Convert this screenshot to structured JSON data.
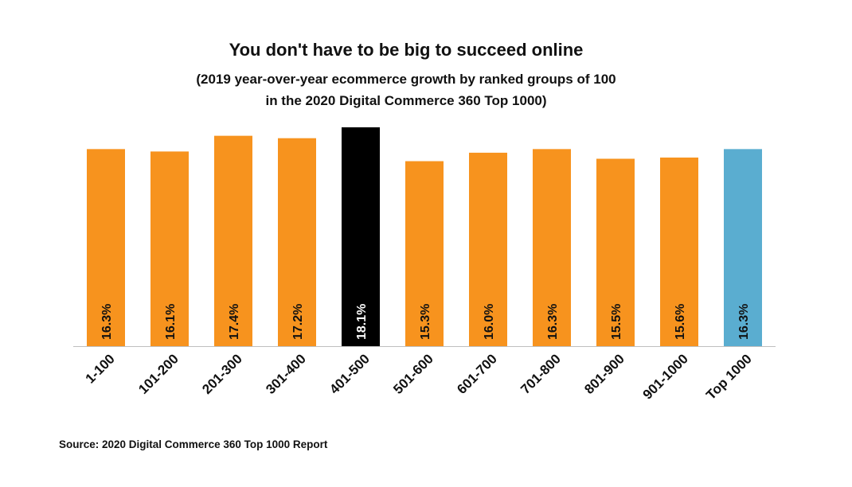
{
  "title": "You don't have to be big to succeed online",
  "subtitle_line1": "(2019 year-over-year ecommerce growth by ranked groups of 100",
  "subtitle_line2": "in the 2020 Digital Commerce 360 Top 1000)",
  "source": "Source: 2020 Digital Commerce 360 Top 1000 Report",
  "colors": {
    "default": "#F7931E",
    "highlight": "#000000",
    "total": "#5AADD0",
    "label_dark": "#111111",
    "label_light": "#ffffff",
    "axis": "#bfbfbf"
  },
  "chart_data": {
    "type": "bar",
    "categories": [
      "1-100",
      "101-200",
      "201-300",
      "301-400",
      "401-500",
      "501-600",
      "601-700",
      "701-800",
      "801-900",
      "901-1000",
      "Top 1000"
    ],
    "values": [
      16.3,
      16.1,
      17.4,
      17.2,
      18.1,
      15.3,
      16.0,
      16.3,
      15.5,
      15.6,
      16.3
    ],
    "data_labels": [
      "16.3%",
      "16.1%",
      "17.4%",
      "17.2%",
      "18.1%",
      "15.3%",
      "16.0%",
      "16.3%",
      "15.5%",
      "15.6%",
      "16.3%"
    ],
    "highlight_index": 4,
    "total_index": 10,
    "ylim": [
      0,
      18.1
    ],
    "grid": false,
    "legend": "none",
    "xlabel": "",
    "ylabel": ""
  }
}
